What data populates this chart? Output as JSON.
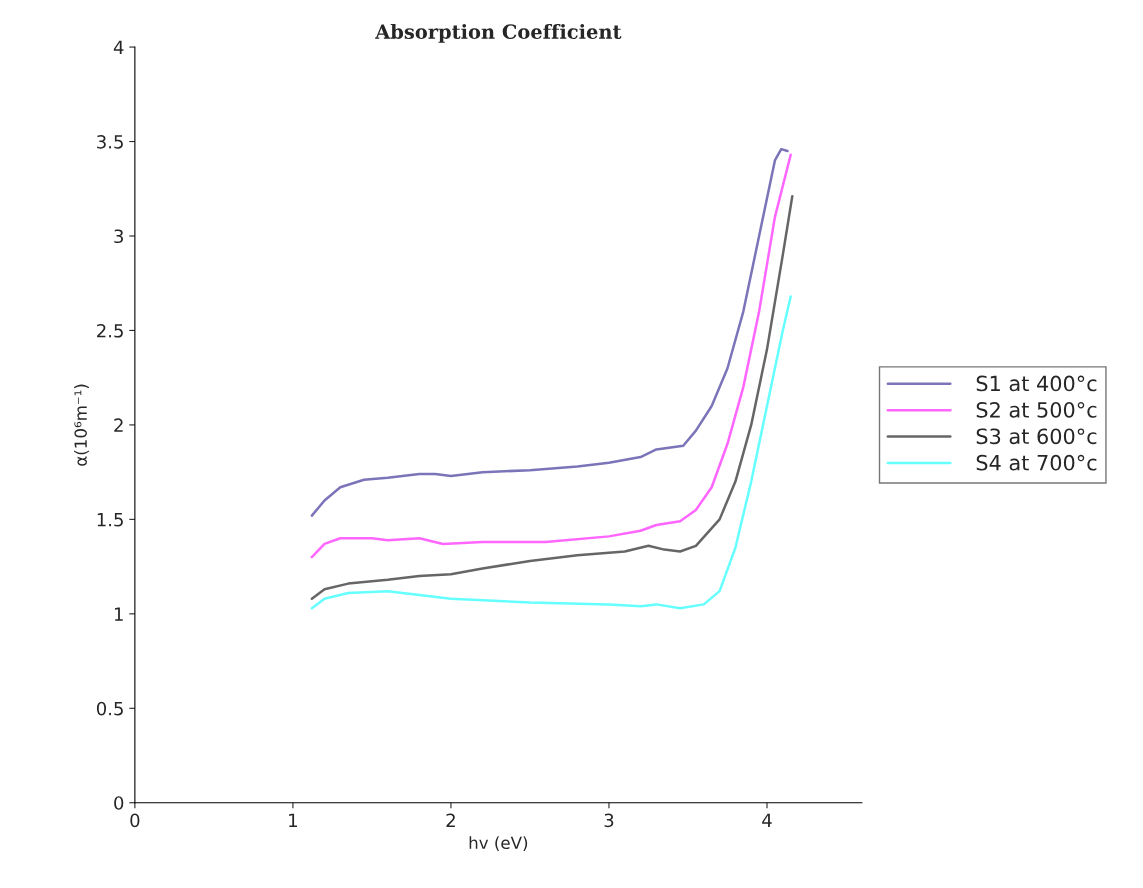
{
  "chart_data": {
    "type": "line",
    "title": "Absorption Coefficient",
    "xlabel": "hv (eV)",
    "ylabel": "α(10⁶m⁻¹)",
    "xlim": [
      0,
      4.6
    ],
    "xticks": [
      0,
      1,
      2,
      3,
      4
    ],
    "ylim": [
      0,
      4
    ],
    "yticks": [
      0,
      0.5,
      1,
      1.5,
      2,
      2.5,
      3,
      3.5,
      4
    ],
    "grid": false,
    "legend": "right",
    "marker": "none",
    "line_style": "solid",
    "series": [
      {
        "name": "S1 at 400°c",
        "color": "#7b74b8",
        "x": [
          1.12,
          1.2,
          1.3,
          1.45,
          1.6,
          1.8,
          1.9,
          2.0,
          2.2,
          2.5,
          2.8,
          3.0,
          3.2,
          3.3,
          3.47,
          3.55,
          3.65,
          3.75,
          3.85,
          3.95,
          4.05,
          4.09,
          4.13
        ],
        "values": [
          1.52,
          1.6,
          1.67,
          1.71,
          1.72,
          1.74,
          1.74,
          1.73,
          1.75,
          1.76,
          1.78,
          1.8,
          1.83,
          1.87,
          1.89,
          1.97,
          2.1,
          2.3,
          2.6,
          3.0,
          3.4,
          3.46,
          3.45
        ]
      },
      {
        "name": "S2 at 500°c",
        "color": "#ff66ff",
        "x": [
          1.12,
          1.2,
          1.3,
          1.5,
          1.6,
          1.8,
          1.95,
          2.2,
          2.6,
          3.0,
          3.2,
          3.3,
          3.45,
          3.55,
          3.65,
          3.75,
          3.85,
          3.95,
          4.05,
          4.15
        ],
        "values": [
          1.3,
          1.37,
          1.4,
          1.4,
          1.39,
          1.4,
          1.37,
          1.38,
          1.38,
          1.41,
          1.44,
          1.47,
          1.49,
          1.55,
          1.67,
          1.9,
          2.2,
          2.6,
          3.1,
          3.43
        ]
      },
      {
        "name": "S3 at 600°c",
        "color": "#666666",
        "x": [
          1.12,
          1.2,
          1.35,
          1.6,
          1.8,
          2.0,
          2.2,
          2.5,
          2.8,
          3.1,
          3.25,
          3.35,
          3.45,
          3.55,
          3.7,
          3.8,
          3.9,
          4.0,
          4.1,
          4.16
        ],
        "values": [
          1.08,
          1.13,
          1.16,
          1.18,
          1.2,
          1.21,
          1.24,
          1.28,
          1.31,
          1.33,
          1.36,
          1.34,
          1.33,
          1.36,
          1.5,
          1.7,
          2.0,
          2.4,
          2.9,
          3.21
        ]
      },
      {
        "name": "S4 at 700°c",
        "color": "#66ffff",
        "x": [
          1.12,
          1.2,
          1.35,
          1.6,
          1.8,
          2.0,
          2.5,
          3.0,
          3.2,
          3.3,
          3.45,
          3.6,
          3.7,
          3.8,
          3.9,
          4.0,
          4.1,
          4.15
        ],
        "values": [
          1.03,
          1.08,
          1.11,
          1.12,
          1.1,
          1.08,
          1.06,
          1.05,
          1.04,
          1.05,
          1.03,
          1.05,
          1.12,
          1.35,
          1.7,
          2.1,
          2.5,
          2.68
        ]
      }
    ]
  }
}
